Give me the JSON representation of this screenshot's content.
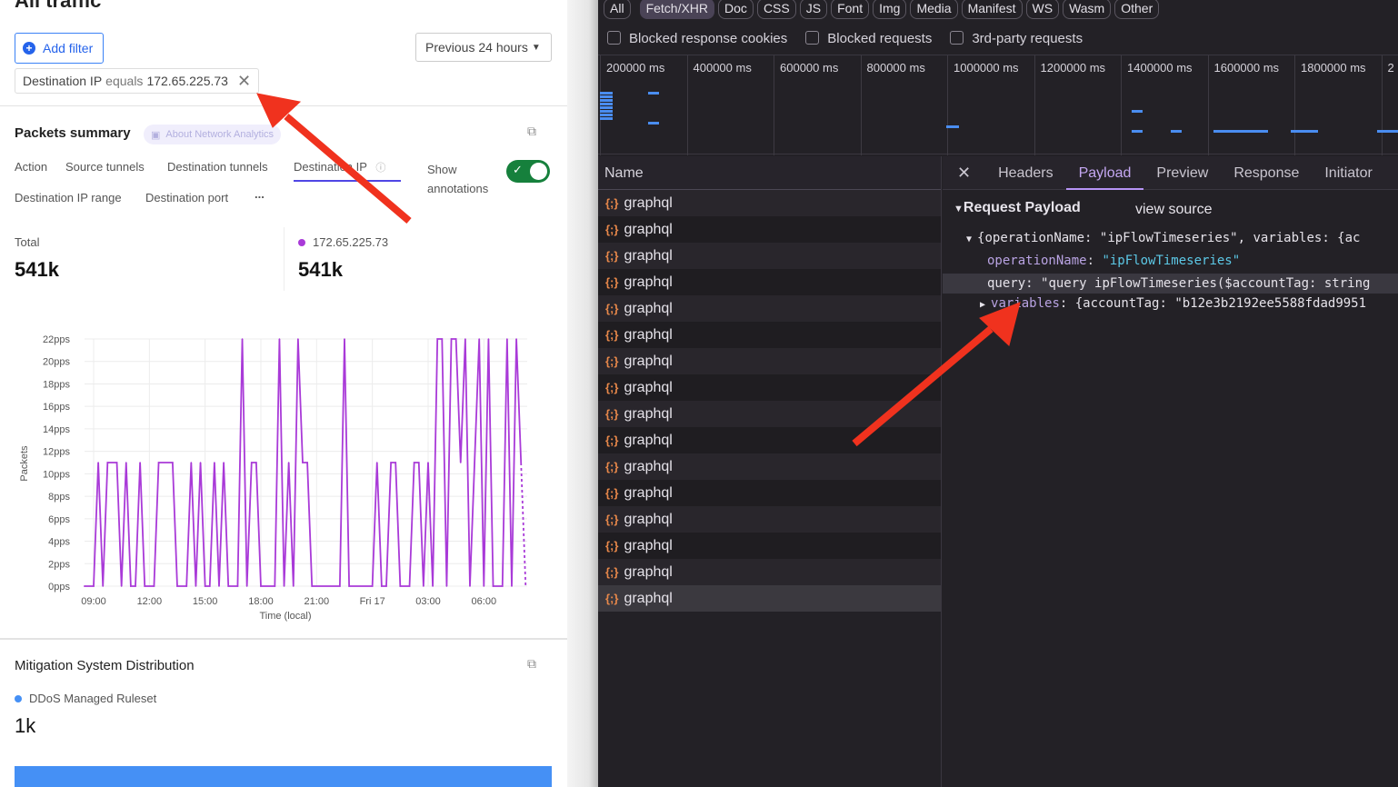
{
  "left": {
    "page_title": "All traffic",
    "add_filter": "Add filter",
    "time_range": "Previous 24 hours",
    "filter_chip": {
      "field": "Destination IP",
      "op": "equals",
      "value": "172.65.225.73"
    },
    "packets_summary": {
      "title": "Packets summary",
      "about_link": "About Network Analytics",
      "tabs": [
        "Action",
        "Source tunnels",
        "Destination tunnels",
        "Destination IP",
        "Destination IP range",
        "Destination port",
        "..."
      ],
      "active_tab": "Destination IP",
      "show_annotations": "Show annotations",
      "annotations_on": true,
      "total_label": "Total",
      "total_value": "541k",
      "series_label": "172.65.225.73",
      "series_value": "541k",
      "series_color": "#a93ad8"
    },
    "mitigation": {
      "title": "Mitigation System Distribution",
      "legend": "DDoS Managed Ruleset",
      "value": "1k",
      "color": "#4590f5"
    }
  },
  "chart_data": {
    "type": "line",
    "xlabel": "Time (local)",
    "ylabel": "Packets",
    "yticks": [
      "0pps",
      "2pps",
      "4pps",
      "6pps",
      "8pps",
      "10pps",
      "12pps",
      "14pps",
      "16pps",
      "18pps",
      "20pps",
      "22pps"
    ],
    "ylim": [
      0,
      22
    ],
    "xticks": [
      "09:00",
      "12:00",
      "15:00",
      "18:00",
      "21:00",
      "Fri 17",
      "03:00",
      "06:00"
    ],
    "grid": true,
    "color": "#a93ad8",
    "points": [
      [
        "Thu 08:30",
        0
      ],
      [
        "Thu 09:00",
        0
      ],
      [
        "Thu 09:15",
        11
      ],
      [
        "Thu 09:30",
        0
      ],
      [
        "Thu 09:45",
        11
      ],
      [
        "Thu 10:15",
        11
      ],
      [
        "Thu 10:30",
        0
      ],
      [
        "Thu 10:45",
        11
      ],
      [
        "Thu 11:00",
        0
      ],
      [
        "Thu 11:15",
        0
      ],
      [
        "Thu 11:30",
        11
      ],
      [
        "Thu 11:45",
        0
      ],
      [
        "Thu 12:15",
        0
      ],
      [
        "Thu 12:30",
        11
      ],
      [
        "Thu 13:15",
        11
      ],
      [
        "Thu 13:30",
        0
      ],
      [
        "Thu 14:00",
        0
      ],
      [
        "Thu 14:15",
        11
      ],
      [
        "Thu 14:30",
        0
      ],
      [
        "Thu 14:45",
        11
      ],
      [
        "Thu 15:00",
        0
      ],
      [
        "Thu 15:15",
        0
      ],
      [
        "Thu 15:30",
        11
      ],
      [
        "Thu 15:45",
        0
      ],
      [
        "Thu 16:00",
        11
      ],
      [
        "Thu 16:15",
        0
      ],
      [
        "Thu 16:45",
        0
      ],
      [
        "Thu 17:00",
        22
      ],
      [
        "Thu 17:15",
        0
      ],
      [
        "Thu 17:30",
        11
      ],
      [
        "Thu 17:45",
        11
      ],
      [
        "Thu 18:00",
        0
      ],
      [
        "Thu 18:45",
        0
      ],
      [
        "Thu 19:00",
        22
      ],
      [
        "Thu 19:15",
        0
      ],
      [
        "Thu 19:30",
        11
      ],
      [
        "Thu 19:45",
        0
      ],
      [
        "Thu 20:00",
        22
      ],
      [
        "Thu 20:15",
        11
      ],
      [
        "Thu 20:30",
        11
      ],
      [
        "Thu 20:45",
        0
      ],
      [
        "Thu 22:15",
        0
      ],
      [
        "Thu 22:30",
        22
      ],
      [
        "Thu 22:45",
        0
      ],
      [
        "Fri 00:00",
        0
      ],
      [
        "Fri 00:15",
        11
      ],
      [
        "Fri 00:30",
        0
      ],
      [
        "Fri 00:45",
        0
      ],
      [
        "Fri 01:00",
        11
      ],
      [
        "Fri 01:15",
        11
      ],
      [
        "Fri 01:30",
        0
      ],
      [
        "Fri 02:00",
        0
      ],
      [
        "Fri 02:15",
        11
      ],
      [
        "Fri 02:30",
        11
      ],
      [
        "Fri 02:45",
        0
      ],
      [
        "Fri 03:00",
        11
      ],
      [
        "Fri 03:15",
        0
      ],
      [
        "Fri 03:30",
        22
      ],
      [
        "Fri 03:45",
        22
      ],
      [
        "Fri 04:00",
        0
      ],
      [
        "Fri 04:15",
        22
      ],
      [
        "Fri 04:30",
        22
      ],
      [
        "Fri 04:45",
        11
      ],
      [
        "Fri 05:00",
        22
      ],
      [
        "Fri 05:15",
        0
      ],
      [
        "Fri 05:45",
        22
      ],
      [
        "Fri 06:00",
        0
      ],
      [
        "Fri 06:15",
        22
      ],
      [
        "Fri 06:30",
        0
      ],
      [
        "Fri 07:00",
        0
      ],
      [
        "Fri 07:15",
        22
      ],
      [
        "Fri 07:30",
        0
      ],
      [
        "Fri 07:45",
        22
      ],
      [
        "Fri 08:00",
        11
      ]
    ],
    "partial_points": [
      [
        "Fri 08:00",
        11
      ],
      [
        "Fri 08:15",
        0
      ]
    ]
  },
  "devtools": {
    "filters": [
      "All",
      "Fetch/XHR",
      "Doc",
      "CSS",
      "JS",
      "Font",
      "Img",
      "Media",
      "Manifest",
      "WS",
      "Wasm",
      "Other"
    ],
    "active_filter": "Fetch/XHR",
    "checkboxes": [
      "Blocked response cookies",
      "Blocked requests",
      "3rd-party requests"
    ],
    "timeline_ticks": [
      "200000 ms",
      "400000 ms",
      "600000 ms",
      "800000 ms",
      "1000000 ms",
      "1200000 ms",
      "1400000 ms",
      "1600000 ms",
      "1800000 ms",
      "2"
    ],
    "name_header": "Name",
    "requests": [
      "graphql",
      "graphql",
      "graphql",
      "graphql",
      "graphql",
      "graphql",
      "graphql",
      "graphql",
      "graphql",
      "graphql",
      "graphql",
      "graphql",
      "graphql",
      "graphql",
      "graphql",
      "graphql"
    ],
    "tabs": [
      "Headers",
      "Payload",
      "Preview",
      "Response",
      "Initiator"
    ],
    "active_tab": "Payload",
    "payload": {
      "title": "Request Payload",
      "view_source": "view source",
      "summary": "{operationName: \"ipFlowTimeseries\", variables: {ac",
      "operationName_key": "operationName",
      "operationName_val": "\"ipFlowTimeseries\"",
      "query_key": "query",
      "query_val": "\"query ipFlowTimeseries($accountTag: string",
      "variables_key": "variables",
      "variables_val": "{accountTag: \"b12e3b2192ee5588fdad9951"
    }
  },
  "annotation_color": "#f0321e"
}
